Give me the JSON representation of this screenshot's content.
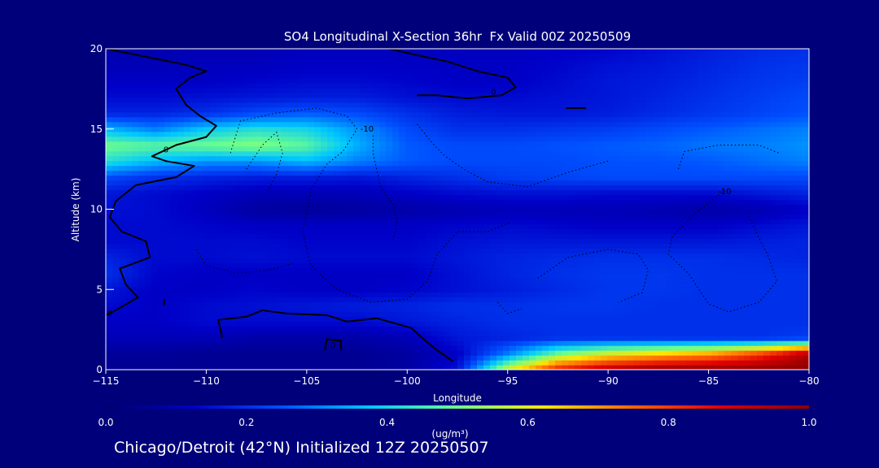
{
  "caption": "Chicago/Detroit (42°N) Initialized 12Z 20250507",
  "chart_data": {
    "type": "heatmap",
    "title": "SO4 Longitudinal X-Section 36hr  Fx Valid 00Z 20250509",
    "xlabel": "Longitude",
    "ylabel": "Altitude (km)",
    "xlim": [
      -115,
      -80
    ],
    "ylim": [
      0,
      20
    ],
    "x_ticks": [
      -115,
      -110,
      -105,
      -100,
      -95,
      -90,
      -85,
      -80
    ],
    "x_tick_labels": [
      "−115",
      "−110",
      "−105",
      "−100",
      "−95",
      "−90",
      "−85",
      "−80"
    ],
    "y_ticks": [
      0,
      5,
      10,
      15,
      20
    ],
    "y_tick_labels": [
      "0",
      "5",
      "10",
      "15",
      "20"
    ],
    "colorbar": {
      "label": "(ug/m³)",
      "range": [
        0.0,
        1.0
      ],
      "ticks": [
        0.0,
        0.2,
        0.4,
        0.6,
        0.8,
        1.0
      ],
      "tick_labels": [
        "0.0",
        "0.2",
        "0.4",
        "0.6",
        "0.8",
        "1.0"
      ]
    },
    "colormap": [
      "#00006e",
      "#0000c8",
      "#0050ff",
      "#00c8ff",
      "#6dff8a",
      "#ffe600",
      "#ff6400",
      "#e00000",
      "#8c0000"
    ],
    "grid": false,
    "legend": "colorbar-bottom",
    "field": {
      "x": [
        -115,
        -112.5,
        -110,
        -107.5,
        -105,
        -102.5,
        -100,
        -97.5,
        -95,
        -92.5,
        -90,
        -87.5,
        -85,
        -82.5,
        -80
      ],
      "y": [
        0,
        1,
        2,
        3,
        4,
        5,
        6,
        7,
        8,
        9,
        10,
        11,
        12,
        13,
        14,
        15,
        16,
        17,
        18,
        19,
        20
      ],
      "values": [
        [
          0.05,
          0.05,
          0.05,
          0.05,
          0.05,
          0.05,
          0.07,
          0.15,
          0.6,
          0.85,
          0.95,
          1.0,
          1.0,
          1.0,
          1.0
        ],
        [
          0.06,
          0.06,
          0.05,
          0.05,
          0.05,
          0.05,
          0.07,
          0.12,
          0.3,
          0.5,
          0.6,
          0.65,
          0.7,
          0.8,
          0.95
        ],
        [
          0.1,
          0.1,
          0.1,
          0.08,
          0.08,
          0.08,
          0.1,
          0.16,
          0.18,
          0.2,
          0.2,
          0.2,
          0.2,
          0.2,
          0.22
        ],
        [
          0.12,
          0.12,
          0.14,
          0.14,
          0.14,
          0.14,
          0.16,
          0.18,
          0.2,
          0.2,
          0.2,
          0.2,
          0.2,
          0.2,
          0.2
        ],
        [
          0.14,
          0.12,
          0.14,
          0.15,
          0.16,
          0.17,
          0.18,
          0.2,
          0.2,
          0.21,
          0.21,
          0.2,
          0.2,
          0.2,
          0.2
        ],
        [
          0.16,
          0.12,
          0.12,
          0.13,
          0.12,
          0.12,
          0.13,
          0.15,
          0.17,
          0.19,
          0.21,
          0.21,
          0.2,
          0.2,
          0.2
        ],
        [
          0.2,
          0.13,
          0.12,
          0.12,
          0.12,
          0.12,
          0.12,
          0.15,
          0.18,
          0.2,
          0.21,
          0.21,
          0.2,
          0.2,
          0.2
        ],
        [
          0.18,
          0.14,
          0.14,
          0.15,
          0.14,
          0.14,
          0.14,
          0.16,
          0.18,
          0.19,
          0.2,
          0.2,
          0.2,
          0.19,
          0.18
        ],
        [
          0.14,
          0.14,
          0.14,
          0.14,
          0.13,
          0.13,
          0.13,
          0.15,
          0.16,
          0.16,
          0.16,
          0.16,
          0.16,
          0.17,
          0.18
        ],
        [
          0.14,
          0.14,
          0.13,
          0.12,
          0.12,
          0.12,
          0.12,
          0.13,
          0.14,
          0.13,
          0.12,
          0.12,
          0.12,
          0.14,
          0.16
        ],
        [
          0.15,
          0.14,
          0.11,
          0.07,
          0.06,
          0.07,
          0.08,
          0.09,
          0.1,
          0.1,
          0.1,
          0.09,
          0.08,
          0.09,
          0.12
        ],
        [
          0.16,
          0.14,
          0.12,
          0.1,
          0.1,
          0.1,
          0.12,
          0.14,
          0.15,
          0.15,
          0.14,
          0.14,
          0.14,
          0.16,
          0.18
        ],
        [
          0.24,
          0.2,
          0.18,
          0.17,
          0.17,
          0.16,
          0.18,
          0.2,
          0.22,
          0.23,
          0.24,
          0.24,
          0.24,
          0.24,
          0.24
        ],
        [
          0.42,
          0.36,
          0.32,
          0.32,
          0.36,
          0.3,
          0.26,
          0.24,
          0.24,
          0.24,
          0.25,
          0.25,
          0.26,
          0.28,
          0.3
        ],
        [
          0.5,
          0.48,
          0.5,
          0.52,
          0.48,
          0.35,
          0.26,
          0.24,
          0.24,
          0.25,
          0.26,
          0.27,
          0.29,
          0.3,
          0.32
        ],
        [
          0.36,
          0.3,
          0.38,
          0.42,
          0.4,
          0.32,
          0.24,
          0.2,
          0.2,
          0.21,
          0.22,
          0.24,
          0.26,
          0.28,
          0.3
        ],
        [
          0.18,
          0.18,
          0.2,
          0.24,
          0.26,
          0.24,
          0.2,
          0.17,
          0.16,
          0.16,
          0.17,
          0.19,
          0.21,
          0.23,
          0.25
        ],
        [
          0.14,
          0.14,
          0.15,
          0.16,
          0.17,
          0.17,
          0.15,
          0.14,
          0.14,
          0.15,
          0.16,
          0.18,
          0.2,
          0.22,
          0.24
        ],
        [
          0.12,
          0.12,
          0.12,
          0.13,
          0.14,
          0.14,
          0.13,
          0.12,
          0.12,
          0.14,
          0.16,
          0.17,
          0.19,
          0.21,
          0.22
        ],
        [
          0.1,
          0.1,
          0.11,
          0.11,
          0.12,
          0.12,
          0.12,
          0.12,
          0.12,
          0.13,
          0.15,
          0.16,
          0.18,
          0.2,
          0.21
        ],
        [
          0.09,
          0.09,
          0.1,
          0.1,
          0.11,
          0.11,
          0.11,
          0.11,
          0.11,
          0.12,
          0.13,
          0.15,
          0.17,
          0.19,
          0.2
        ]
      ]
    },
    "contour_labels": [
      {
        "text": "0",
        "x": -103.7,
        "y": 1.5
      },
      {
        "text": "0",
        "x": -114.8,
        "y": 3.5
      },
      {
        "text": "0",
        "x": -112,
        "y": 13.7
      },
      {
        "text": "0",
        "x": -95.7,
        "y": 17.3
      },
      {
        "text": "-10",
        "x": -102,
        "y": 15
      },
      {
        "text": "-10",
        "x": -84.2,
        "y": 11.1
      }
    ],
    "contours_solid": [
      [
        [
          -115,
          20
        ],
        [
          -113,
          19.5
        ],
        [
          -111,
          19
        ],
        [
          -110,
          18.6
        ],
        [
          -110.8,
          18.2
        ],
        [
          -111.5,
          17.5
        ],
        [
          -111,
          16.5
        ],
        [
          -110.3,
          15.8
        ],
        [
          -109.5,
          15.2
        ],
        [
          -110,
          14.5
        ],
        [
          -111.5,
          14
        ],
        [
          -112.7,
          13.3
        ],
        [
          -112,
          13
        ],
        [
          -110.6,
          12.7
        ],
        [
          -111.5,
          12
        ],
        [
          -113.5,
          11.5
        ],
        [
          -114.5,
          10.5
        ],
        [
          -114.8,
          9.5
        ],
        [
          -114.2,
          8.6
        ],
        [
          -113,
          8
        ],
        [
          -112.8,
          7
        ],
        [
          -114.3,
          6.3
        ],
        [
          -114,
          5.3
        ],
        [
          -113.4,
          4.5
        ],
        [
          -114.5,
          3.7
        ],
        [
          -115,
          3.4
        ]
      ],
      [
        [
          -109.2,
          2
        ],
        [
          -109.4,
          3.1
        ],
        [
          -108,
          3.3
        ],
        [
          -107.2,
          3.7
        ],
        [
          -106,
          3.5
        ],
        [
          -104,
          3.4
        ],
        [
          -103,
          3
        ],
        [
          -101.5,
          3.2
        ],
        [
          -99.8,
          2.6
        ],
        [
          -99,
          1.7
        ],
        [
          -98.5,
          1.2
        ],
        [
          -97.7,
          0.5
        ]
      ],
      [
        [
          -104.1,
          1.2
        ],
        [
          -104,
          1.9
        ],
        [
          -103.3,
          1.8
        ],
        [
          -103.3,
          1.2
        ]
      ],
      [
        [
          -112.1,
          4
        ],
        [
          -112.1,
          4.4
        ]
      ],
      [
        [
          -100.9,
          20
        ],
        [
          -99.5,
          19.6
        ],
        [
          -98,
          19.2
        ],
        [
          -96.5,
          18.6
        ],
        [
          -95,
          18.2
        ],
        [
          -94.6,
          17.6
        ],
        [
          -95.3,
          17.1
        ],
        [
          -97,
          16.9
        ],
        [
          -98.5,
          17.1
        ],
        [
          -99.5,
          17.1
        ]
      ],
      [
        [
          -92.1,
          16.3
        ],
        [
          -91.1,
          16.3
        ]
      ]
    ],
    "contours_dotted": [
      [
        [
          -108.8,
          13.5
        ],
        [
          -108.3,
          15.5
        ],
        [
          -106.5,
          16
        ],
        [
          -104.5,
          16.3
        ],
        [
          -103,
          15.8
        ],
        [
          -102.5,
          15
        ],
        [
          -103.2,
          13.6
        ],
        [
          -104,
          12.8
        ],
        [
          -104.8,
          11.2
        ],
        [
          -105,
          9.8
        ],
        [
          -105.2,
          8.6
        ],
        [
          -104.8,
          6.5
        ],
        [
          -103.5,
          5
        ],
        [
          -101.8,
          4.2
        ],
        [
          -100,
          4.4
        ],
        [
          -99,
          5.5
        ],
        [
          -98.5,
          7.2
        ],
        [
          -97.5,
          8.6
        ],
        [
          -96,
          8.6
        ],
        [
          -94.8,
          9.2
        ]
      ],
      [
        [
          -108,
          12.5
        ],
        [
          -107.2,
          14
        ],
        [
          -106.5,
          14.8
        ],
        [
          -106.2,
          13.5
        ],
        [
          -106.5,
          12.2
        ],
        [
          -107,
          11
        ]
      ],
      [
        [
          -101.7,
          14.6
        ],
        [
          -101.7,
          13.5
        ],
        [
          -101.3,
          11.3
        ],
        [
          -100.7,
          10.3
        ],
        [
          -100.5,
          9.2
        ],
        [
          -100.7,
          8.1
        ]
      ],
      [
        [
          -99.5,
          15.3
        ],
        [
          -98.8,
          14.2
        ],
        [
          -98.2,
          13.4
        ],
        [
          -97.2,
          12.5
        ],
        [
          -96,
          11.7
        ],
        [
          -94,
          11.4
        ],
        [
          -92,
          12.3
        ],
        [
          -90,
          13
        ]
      ],
      [
        [
          -110.5,
          7.5
        ],
        [
          -110,
          6.5
        ],
        [
          -108.5,
          6
        ],
        [
          -107,
          6.2
        ],
        [
          -105.7,
          6.6
        ]
      ],
      [
        [
          -95.5,
          4.2
        ],
        [
          -95,
          3.5
        ],
        [
          -94.3,
          3.8
        ]
      ],
      [
        [
          -93.5,
          5.7
        ],
        [
          -92,
          7
        ],
        [
          -90,
          7.5
        ],
        [
          -88.5,
          7.2
        ],
        [
          -88,
          6.2
        ],
        [
          -88.3,
          4.8
        ],
        [
          -89.5,
          4.2
        ]
      ],
      [
        [
          -84.2,
          11.2
        ],
        [
          -85.8,
          9.6
        ],
        [
          -86.8,
          8.3
        ],
        [
          -87,
          7.2
        ],
        [
          -86,
          6
        ],
        [
          -85,
          4.1
        ],
        [
          -84,
          3.6
        ],
        [
          -82.5,
          4.2
        ],
        [
          -81.6,
          5.5
        ],
        [
          -82,
          7
        ],
        [
          -82.6,
          8.5
        ],
        [
          -83,
          9.6
        ]
      ],
      [
        [
          -86.5,
          12.5
        ],
        [
          -86.2,
          13.6
        ],
        [
          -84.5,
          14
        ],
        [
          -82.5,
          14
        ],
        [
          -81.5,
          13.5
        ]
      ]
    ]
  }
}
